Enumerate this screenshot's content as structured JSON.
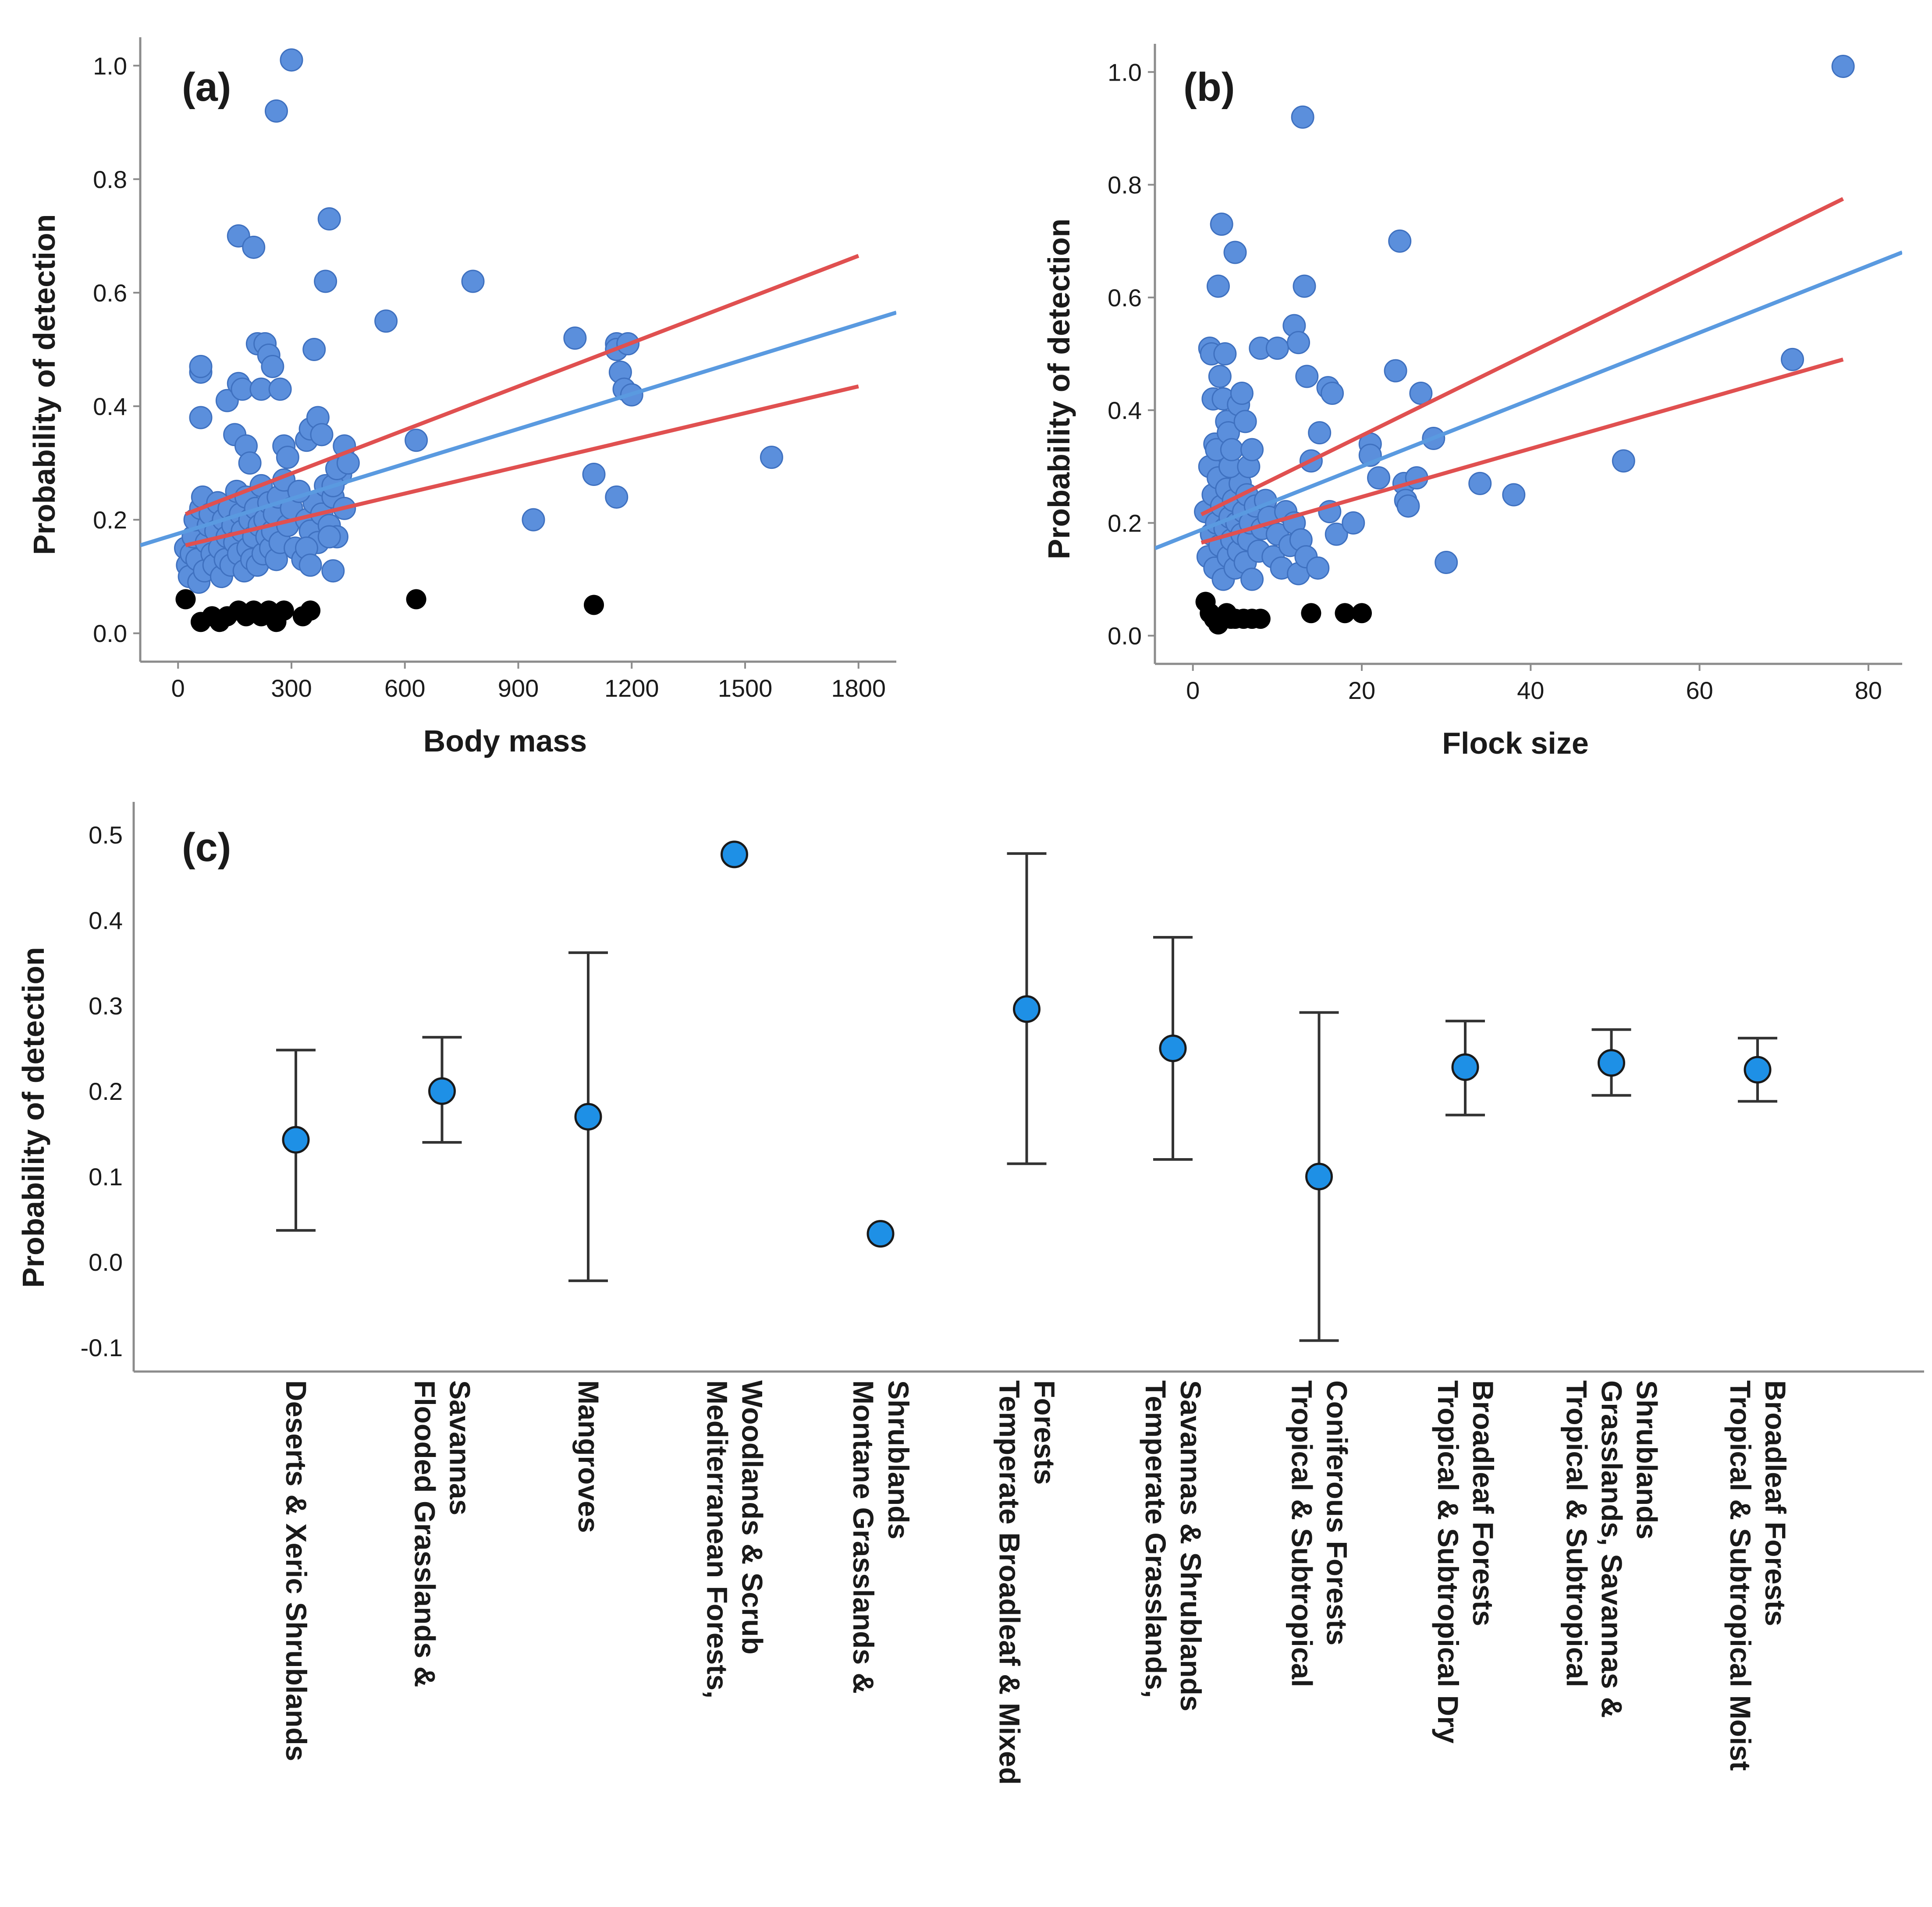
{
  "chart_data": [
    {
      "panel": "(a)",
      "type": "scatter",
      "xlabel": "Body mass",
      "ylabel": "Probability of detection",
      "xlim": [
        -100,
        1900
      ],
      "ylim": [
        -0.05,
        1.05
      ],
      "xticks": [
        0,
        300,
        600,
        900,
        1200,
        1500,
        1800
      ],
      "xtick_labels": [
        "0",
        "300",
        "600",
        "900",
        "1200",
        "1500",
        "1800"
      ],
      "yticks": [
        0.0,
        0.2,
        0.4,
        0.6,
        0.8,
        1.0
      ],
      "ytick_labels": [
        "0.0",
        "0.2",
        "0.4",
        "0.6",
        "0.8",
        "1.0"
      ],
      "colors": {
        "points": "#5b8fdc",
        "zero_points": "#000000",
        "fit": "#5a9ae0",
        "ci": "#e05050"
      },
      "points": [
        [
          20,
          0.15
        ],
        [
          25,
          0.12
        ],
        [
          30,
          0.1
        ],
        [
          35,
          0.14
        ],
        [
          40,
          0.17
        ],
        [
          45,
          0.2
        ],
        [
          50,
          0.13
        ],
        [
          55,
          0.09
        ],
        [
          60,
          0.22
        ],
        [
          65,
          0.24
        ],
        [
          70,
          0.11
        ],
        [
          75,
          0.16
        ],
        [
          80,
          0.19
        ],
        [
          85,
          0.21
        ],
        [
          90,
          0.14
        ],
        [
          95,
          0.12
        ],
        [
          100,
          0.18
        ],
        [
          105,
          0.23
        ],
        [
          110,
          0.15
        ],
        [
          115,
          0.1
        ],
        [
          120,
          0.2
        ],
        [
          125,
          0.13
        ],
        [
          130,
          0.17
        ],
        [
          135,
          0.22
        ],
        [
          140,
          0.12
        ],
        [
          145,
          0.19
        ],
        [
          150,
          0.16
        ],
        [
          155,
          0.25
        ],
        [
          160,
          0.14
        ],
        [
          165,
          0.21
        ],
        [
          170,
          0.18
        ],
        [
          175,
          0.11
        ],
        [
          180,
          0.24
        ],
        [
          185,
          0.15
        ],
        [
          190,
          0.2
        ],
        [
          195,
          0.13
        ],
        [
          200,
          0.17
        ],
        [
          205,
          0.22
        ],
        [
          210,
          0.12
        ],
        [
          215,
          0.19
        ],
        [
          220,
          0.26
        ],
        [
          225,
          0.14
        ],
        [
          230,
          0.2
        ],
        [
          235,
          0.17
        ],
        [
          240,
          0.23
        ],
        [
          245,
          0.15
        ],
        [
          250,
          0.18
        ],
        [
          255,
          0.21
        ],
        [
          260,
          0.13
        ],
        [
          265,
          0.24
        ],
        [
          270,
          0.16
        ],
        [
          280,
          0.27
        ],
        [
          290,
          0.19
        ],
        [
          300,
          0.22
        ],
        [
          310,
          0.15
        ],
        [
          320,
          0.25
        ],
        [
          330,
          0.13
        ],
        [
          340,
          0.2
        ],
        [
          350,
          0.18
        ],
        [
          360,
          0.23
        ],
        [
          370,
          0.16
        ],
        [
          380,
          0.21
        ],
        [
          390,
          0.26
        ],
        [
          400,
          0.19
        ],
        [
          410,
          0.24
        ],
        [
          420,
          0.17
        ],
        [
          430,
          0.28
        ],
        [
          440,
          0.22
        ],
        [
          60,
          0.46
        ],
        [
          60,
          0.47
        ],
        [
          60,
          0.38
        ],
        [
          130,
          0.41
        ],
        [
          150,
          0.35
        ],
        [
          160,
          0.44
        ],
        [
          160,
          0.7
        ],
        [
          170,
          0.43
        ],
        [
          180,
          0.33
        ],
        [
          190,
          0.3
        ],
        [
          200,
          0.68
        ],
        [
          210,
          0.51
        ],
        [
          220,
          0.43
        ],
        [
          230,
          0.51
        ],
        [
          240,
          0.49
        ],
        [
          250,
          0.47
        ],
        [
          260,
          0.92
        ],
        [
          270,
          0.43
        ],
        [
          280,
          0.33
        ],
        [
          290,
          0.31
        ],
        [
          300,
          1.01
        ],
        [
          320,
          0.25
        ],
        [
          340,
          0.34
        ],
        [
          350,
          0.36
        ],
        [
          360,
          0.5
        ],
        [
          370,
          0.38
        ],
        [
          380,
          0.35
        ],
        [
          390,
          0.62
        ],
        [
          400,
          0.73
        ],
        [
          410,
          0.26
        ],
        [
          420,
          0.29
        ],
        [
          440,
          0.33
        ],
        [
          340,
          0.15
        ],
        [
          350,
          0.12
        ],
        [
          400,
          0.17
        ],
        [
          410,
          0.11
        ],
        [
          450,
          0.3
        ],
        [
          550,
          0.55
        ],
        [
          630,
          0.34
        ],
        [
          780,
          0.62
        ],
        [
          940,
          0.2
        ],
        [
          1050,
          0.52
        ],
        [
          1100,
          0.28
        ],
        [
          1160,
          0.51
        ],
        [
          1160,
          0.5
        ],
        [
          1170,
          0.46
        ],
        [
          1180,
          0.43
        ],
        [
          1190,
          0.51
        ],
        [
          1200,
          0.42
        ],
        [
          1160,
          0.24
        ],
        [
          1570,
          0.31
        ]
      ],
      "zero_points": [
        [
          20,
          0.06
        ],
        [
          60,
          0.02
        ],
        [
          90,
          0.03
        ],
        [
          110,
          0.02
        ],
        [
          130,
          0.03
        ],
        [
          160,
          0.04
        ],
        [
          180,
          0.03
        ],
        [
          200,
          0.04
        ],
        [
          220,
          0.03
        ],
        [
          240,
          0.04
        ],
        [
          260,
          0.02
        ],
        [
          280,
          0.04
        ],
        [
          330,
          0.03
        ],
        [
          350,
          0.04
        ],
        [
          630,
          0.06
        ],
        [
          1100,
          0.05
        ]
      ],
      "fit_line": {
        "x": [
          -100,
          1900
        ],
        "y": [
          0.155,
          0.565
        ]
      },
      "ci_upper": {
        "x": [
          20,
          1800
        ],
        "y": [
          0.21,
          0.665
        ]
      },
      "ci_lower": {
        "x": [
          20,
          1800
        ],
        "y": [
          0.155,
          0.435
        ]
      }
    },
    {
      "panel": "(b)",
      "type": "scatter",
      "xlabel": "Flock size",
      "ylabel": "Probability of detection",
      "xlim": [
        -4.5,
        84
      ],
      "ylim": [
        -0.05,
        1.05
      ],
      "xticks": [
        0,
        20,
        40,
        60,
        80
      ],
      "xtick_labels": [
        "0",
        "20",
        "40",
        "60",
        "80"
      ],
      "yticks": [
        0.0,
        0.2,
        0.4,
        0.6,
        0.8,
        1.0
      ],
      "ytick_labels": [
        "0.0",
        "0.2",
        "0.4",
        "0.6",
        "0.8",
        "1.0"
      ],
      "colors": {
        "points": "#5b8fdc",
        "zero_points": "#000000",
        "fit": "#5a9ae0",
        "ci": "#e05050"
      },
      "points": [
        [
          1.5,
          0.22
        ],
        [
          1.8,
          0.14
        ],
        [
          2.0,
          0.3
        ],
        [
          2.2,
          0.18
        ],
        [
          2.4,
          0.25
        ],
        [
          2.6,
          0.12
        ],
        [
          2.8,
          0.2
        ],
        [
          3.0,
          0.28
        ],
        [
          3.2,
          0.16
        ],
        [
          3.4,
          0.23
        ],
        [
          3.6,
          0.1
        ],
        [
          3.8,
          0.19
        ],
        [
          4.0,
          0.26
        ],
        [
          4.2,
          0.14
        ],
        [
          4.4,
          0.21
        ],
        [
          4.6,
          0.17
        ],
        [
          4.8,
          0.24
        ],
        [
          5.0,
          0.12
        ],
        [
          5.2,
          0.2
        ],
        [
          5.4,
          0.15
        ],
        [
          5.6,
          0.27
        ],
        [
          5.8,
          0.18
        ],
        [
          6.0,
          0.22
        ],
        [
          6.2,
          0.13
        ],
        [
          6.4,
          0.25
        ],
        [
          6.6,
          0.17
        ],
        [
          6.8,
          0.2
        ],
        [
          7.0,
          0.1
        ],
        [
          7.4,
          0.23
        ],
        [
          7.8,
          0.15
        ],
        [
          8.2,
          0.19
        ],
        [
          8.6,
          0.24
        ],
        [
          9.0,
          0.21
        ],
        [
          9.5,
          0.14
        ],
        [
          10.0,
          0.18
        ],
        [
          10.5,
          0.12
        ],
        [
          11.0,
          0.22
        ],
        [
          11.5,
          0.16
        ],
        [
          12.0,
          0.2
        ],
        [
          12.5,
          0.11
        ],
        [
          2.0,
          0.51
        ],
        [
          2.2,
          0.5
        ],
        [
          2.4,
          0.42
        ],
        [
          2.6,
          0.34
        ],
        [
          2.8,
          0.33
        ],
        [
          3.0,
          0.62
        ],
        [
          3.2,
          0.46
        ],
        [
          3.4,
          0.73
        ],
        [
          3.6,
          0.42
        ],
        [
          3.8,
          0.5
        ],
        [
          4.0,
          0.38
        ],
        [
          4.2,
          0.36
        ],
        [
          4.4,
          0.3
        ],
        [
          4.6,
          0.33
        ],
        [
          5.0,
          0.68
        ],
        [
          5.4,
          0.41
        ],
        [
          5.8,
          0.43
        ],
        [
          6.2,
          0.38
        ],
        [
          6.6,
          0.3
        ],
        [
          7.0,
          0.33
        ],
        [
          8.0,
          0.51
        ],
        [
          10.0,
          0.51
        ],
        [
          12.0,
          0.55
        ],
        [
          12.5,
          0.52
        ],
        [
          13.0,
          0.92
        ],
        [
          13.2,
          0.62
        ],
        [
          13.5,
          0.46
        ],
        [
          14.0,
          0.31
        ],
        [
          15.0,
          0.36
        ],
        [
          16.0,
          0.44
        ],
        [
          16.5,
          0.43
        ],
        [
          16.2,
          0.22
        ],
        [
          17.0,
          0.18
        ],
        [
          19.0,
          0.2
        ],
        [
          21.0,
          0.34
        ],
        [
          21.0,
          0.32
        ],
        [
          22.0,
          0.28
        ],
        [
          24.0,
          0.47
        ],
        [
          24.5,
          0.7
        ],
        [
          25.0,
          0.27
        ],
        [
          25.2,
          0.24
        ],
        [
          25.5,
          0.23
        ],
        [
          26.5,
          0.28
        ],
        [
          27.0,
          0.43
        ],
        [
          28.5,
          0.35
        ],
        [
          30.0,
          0.13
        ],
        [
          34.0,
          0.27
        ],
        [
          38.0,
          0.25
        ],
        [
          51.0,
          0.31
        ],
        [
          71.0,
          0.49
        ],
        [
          77.0,
          1.01
        ],
        [
          12.8,
          0.17
        ],
        [
          13.4,
          0.14
        ],
        [
          14.8,
          0.12
        ]
      ],
      "zero_points": [
        [
          1.5,
          0.06
        ],
        [
          2.0,
          0.04
        ],
        [
          2.5,
          0.03
        ],
        [
          3.0,
          0.02
        ],
        [
          3.5,
          0.03
        ],
        [
          4.0,
          0.04
        ],
        [
          4.5,
          0.03
        ],
        [
          5.0,
          0.03
        ],
        [
          6.0,
          0.03
        ],
        [
          7.0,
          0.03
        ],
        [
          8.0,
          0.03
        ],
        [
          14.0,
          0.04
        ],
        [
          18.0,
          0.04
        ],
        [
          20.0,
          0.04
        ]
      ],
      "fit_line": {
        "x": [
          -4.5,
          84
        ],
        "y": [
          0.155,
          0.68
        ]
      },
      "ci_upper": {
        "x": [
          1,
          77
        ],
        "y": [
          0.215,
          0.775
        ]
      },
      "ci_lower": {
        "x": [
          1,
          77
        ],
        "y": [
          0.165,
          0.49
        ]
      }
    },
    {
      "panel": "(c)",
      "type": "errorbar",
      "ylabel": "Probability of detection",
      "ylim": [
        -0.13,
        0.55
      ],
      "yticks": [
        -0.1,
        0.0,
        0.1,
        0.2,
        0.3,
        0.4,
        0.5
      ],
      "ytick_labels": [
        "-0.1",
        "0.0",
        "0.1",
        "0.2",
        "0.3",
        "0.4",
        "0.5"
      ],
      "colors": {
        "points": "#1e90e6",
        "errorbars": "#333333"
      },
      "categories": [
        [
          "Deserts & Xeric Shrublands"
        ],
        [
          "Flooded Grasslands &",
          "Savannas"
        ],
        [
          "Mangroves"
        ],
        [
          "Mediterranean Forests,",
          "Woodlands & Scrub"
        ],
        [
          "Montane Grasslands &",
          "Shrublands"
        ],
        [
          "Temperate Broadleaf & Mixed",
          "Forests"
        ],
        [
          "Temperate Grasslands,",
          "Savannas & Shrublands"
        ],
        [
          "Tropical & Subtropical",
          "Coniferous Forests"
        ],
        [
          "Tropical & Subtropical Dry",
          "Broadleaf Forests"
        ],
        [
          "Tropical & Subtropical",
          "Grasslands, Savannas &",
          "Shrublands"
        ],
        [
          "Tropical & Subtropical Moist",
          "Broadleaf Forests"
        ]
      ],
      "means": [
        0.143,
        0.2,
        0.17,
        0.477,
        0.033,
        0.296,
        0.25,
        0.1,
        0.228,
        0.233,
        0.225
      ],
      "lower": [
        0.037,
        0.14,
        -0.022,
        null,
        null,
        0.115,
        0.12,
        -0.092,
        0.172,
        0.195,
        0.188
      ],
      "upper": [
        0.248,
        0.263,
        0.362,
        null,
        null,
        0.478,
        0.38,
        0.292,
        0.282,
        0.272,
        0.262
      ]
    }
  ]
}
